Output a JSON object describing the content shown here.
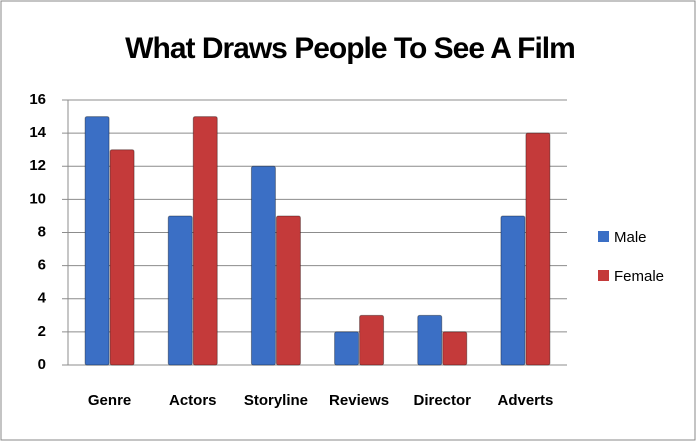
{
  "chart_data": {
    "type": "bar",
    "title": "What Draws People To See A Film",
    "categories": [
      "Genre",
      "Actors",
      "Storyline",
      "Reviews",
      "Director",
      "Adverts"
    ],
    "series": [
      {
        "name": "Male",
        "color": "#3b6fc5",
        "values": [
          15,
          9,
          12,
          2,
          3,
          9
        ]
      },
      {
        "name": "Female",
        "color": "#c43a3a",
        "values": [
          13,
          15,
          9,
          3,
          2,
          14
        ]
      }
    ],
    "ylim": [
      0,
      16
    ],
    "yticks": [
      0,
      2,
      4,
      6,
      8,
      10,
      12,
      14,
      16
    ],
    "grid": true,
    "legend": "right"
  }
}
